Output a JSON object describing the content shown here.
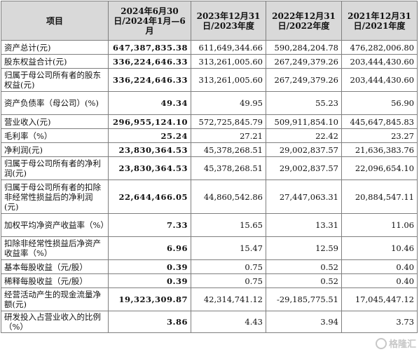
{
  "headers": [
    "项目",
    "2024年6月30日/2024年1月—6月",
    "2023年12月31日/2023年度",
    "2022年12月31日/2022年度",
    "2021年12月31日/2021年度"
  ],
  "rows": [
    {
      "label": "资产总计(元)",
      "values": [
        "647,387,835.38",
        "611,649,344.66",
        "590,284,204.78",
        "476,282,006.80"
      ]
    },
    {
      "label": "股东权益合计(元)",
      "values": [
        "336,224,646.33",
        "313,261,005.60",
        "267,249,379.26",
        "203,444,430.60"
      ]
    },
    {
      "label": "归属于母公司所有者的股东权益(元)",
      "values": [
        "336,224,646.33",
        "313,261,005.60",
        "267,249,379.26",
        "203,444,430.60"
      ]
    },
    {
      "label": "资产负债率（母公司）(%)",
      "values": [
        "49.34",
        "49.95",
        "55.23",
        "56.90"
      ]
    },
    {
      "label": "营业收入(元)",
      "values": [
        "296,955,124.10",
        "572,725,845.79",
        "509,911,854.10",
        "445,647,845.83"
      ]
    },
    {
      "label": "毛利率（%）",
      "values": [
        "25.24",
        "27.21",
        "22.42",
        "23.27"
      ]
    },
    {
      "label": "净利润(元)",
      "values": [
        "23,830,364.53",
        "45,378,268.51",
        "29,002,837.57",
        "21,636,383.76"
      ]
    },
    {
      "label": "归属于母公司所有者的净利润(元)",
      "values": [
        "23,830,364.53",
        "45,378,268.51",
        "29,002,837.57",
        "22,096,654.10"
      ]
    },
    {
      "label": "归属于母公司所有者的扣除非经常性损益后的净利润(元)",
      "values": [
        "22,644,466.05",
        "44,860,542.86",
        "27,447,063.31",
        "20,884,547.11"
      ]
    },
    {
      "label": "加权平均净资产收益率（%）",
      "values": [
        "7.33",
        "15.65",
        "13.31",
        "11.06"
      ]
    },
    {
      "label": "扣除非经常性损益后净资产收益率（%）",
      "values": [
        "6.96",
        "15.47",
        "12.59",
        "10.46"
      ]
    },
    {
      "label": "基本每股收益（元/股）",
      "values": [
        "0.39",
        "0.75",
        "0.52",
        "0.40"
      ]
    },
    {
      "label": "稀释每股收益（元/股）",
      "values": [
        "0.39",
        "0.75",
        "0.52",
        "0.40"
      ]
    },
    {
      "label": "经营活动产生的现金流量净额(元)",
      "values": [
        "19,323,309.87",
        "42,314,741.12",
        "-29,185,775.51",
        "17,045,447.12"
      ]
    },
    {
      "label": "研发投入占营业收入的比例（%）",
      "values": [
        "3.86",
        "4.43",
        "3.94",
        "3.73"
      ]
    }
  ],
  "watermark": "格隆汇"
}
